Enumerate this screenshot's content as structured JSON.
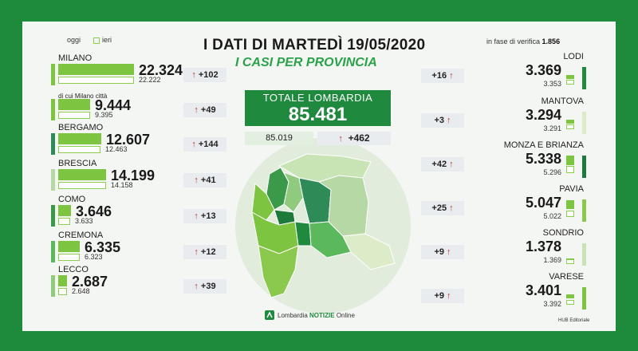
{
  "legend": {
    "today_label": "oggi",
    "yesterday_label": "ieri",
    "today_color": "#7dc540",
    "yesterday_color": "#ffffff"
  },
  "header": {
    "title": "I DATI DI MARTEDÌ 19/05/2020",
    "subtitle": "I CASI PER PROVINCIA"
  },
  "verifying": {
    "label": "in fase di verifica",
    "value": "1.856"
  },
  "total": {
    "label": "TOTALE LOMBARDIA",
    "value": "85.481",
    "yesterday": "85.019",
    "delta": "+462"
  },
  "footer": {
    "logo_prefix": "Lombardia ",
    "logo_bold": "NOTIZIE",
    "logo_suffix": " Online",
    "credit": "HUB Editoriale"
  },
  "icons": {
    "delta_arrow": "↑"
  },
  "chart_data": {
    "type": "bar",
    "title": "I DATI DI MARTEDÌ 19/05/2020",
    "subtitle": "I CASI PER PROVINCIA",
    "series_names": [
      "oggi",
      "ieri"
    ],
    "left": [
      {
        "name": "MILANO",
        "today": "22.324",
        "yesterday": "22.222",
        "delta": "+102",
        "today_value": 22324,
        "yesterday_value": 22222,
        "shade": "#7dc540"
      },
      {
        "name": "di cui Milano città",
        "today": "9.444",
        "yesterday": "9.395",
        "delta": "+49",
        "today_value": 9444,
        "yesterday_value": 9395,
        "shade": "#7dc540"
      },
      {
        "name": "BERGAMO",
        "today": "12.607",
        "yesterday": "12.463",
        "delta": "+144",
        "today_value": 12607,
        "yesterday_value": 12463,
        "shade": "#2e8b57"
      },
      {
        "name": "BRESCIA",
        "today": "14.199",
        "yesterday": "14.158",
        "delta": "+41",
        "today_value": 14199,
        "yesterday_value": 14158,
        "shade": "#b5d8a5"
      },
      {
        "name": "COMO",
        "today": "3.646",
        "yesterday": "3.633",
        "delta": "+13",
        "today_value": 3646,
        "yesterday_value": 3633,
        "shade": "#3a9a4a"
      },
      {
        "name": "CREMONA",
        "today": "6.335",
        "yesterday": "6.323",
        "delta": "+12",
        "today_value": 6335,
        "yesterday_value": 6323,
        "shade": "#5cb85c"
      },
      {
        "name": "LECCO",
        "today": "2.687",
        "yesterday": "2.648",
        "delta": "+39",
        "today_value": 2687,
        "yesterday_value": 2648,
        "shade": "#8fca7e"
      }
    ],
    "right": [
      {
        "name": "LODI",
        "today": "3.369",
        "yesterday": "3.353",
        "delta": "+16",
        "today_value": 3369,
        "yesterday_value": 3353,
        "shade": "#1f8a3e"
      },
      {
        "name": "MANTOVA",
        "today": "3.294",
        "yesterday": "3.291",
        "delta": "+3",
        "today_value": 3294,
        "yesterday_value": 3291,
        "shade": "#dcecc8"
      },
      {
        "name": "MONZA E BRIANZA",
        "today": "5.338",
        "yesterday": "5.296",
        "delta": "+42",
        "today_value": 5338,
        "yesterday_value": 5296,
        "shade": "#1e7a3a"
      },
      {
        "name": "PAVIA",
        "today": "5.047",
        "yesterday": "5.022",
        "delta": "+25",
        "today_value": 5047,
        "yesterday_value": 5022,
        "shade": "#8bc84e"
      },
      {
        "name": "SONDRIO",
        "today": "1.378",
        "yesterday": "1.369",
        "delta": "+9",
        "today_value": 1378,
        "yesterday_value": 1369,
        "shade": "#c8e3b4"
      },
      {
        "name": "VARESE",
        "today": "3.401",
        "yesterday": "3.392",
        "delta": "+9",
        "today_value": 3401,
        "yesterday_value": 3392,
        "shade": "#7dc540"
      }
    ]
  }
}
